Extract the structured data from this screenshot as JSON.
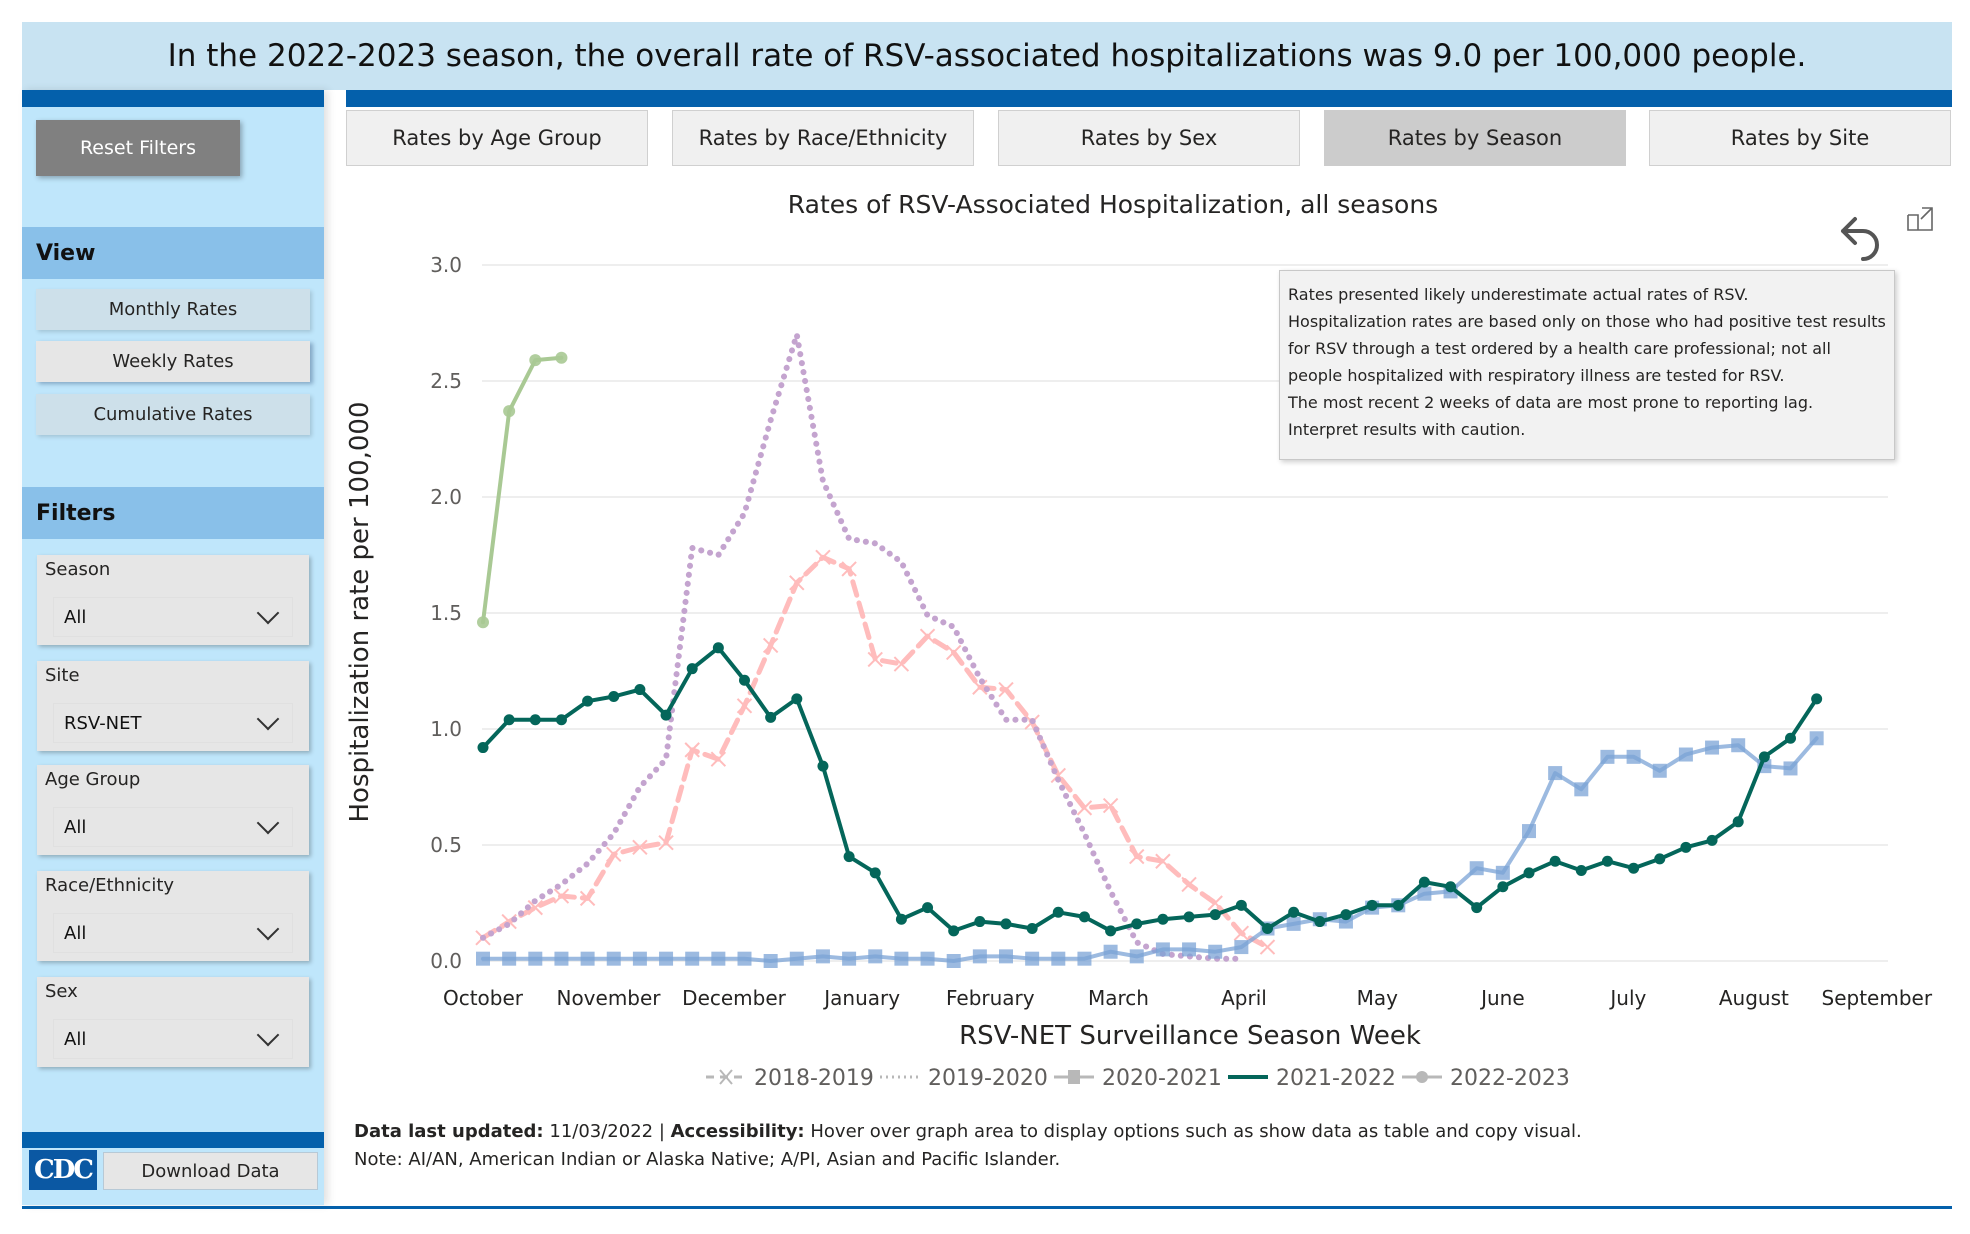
{
  "banner": {
    "text": "In the 2022-2023 season, the overall rate of RSV-associated hospitalizations was 9.0 per 100,000 people."
  },
  "sidebar": {
    "reset_label": "Reset Filters",
    "view_heading": "View",
    "view_buttons": [
      {
        "label": "Monthly Rates",
        "selected": false
      },
      {
        "label": "Weekly Rates",
        "selected": true
      },
      {
        "label": "Cumulative Rates",
        "selected": false
      }
    ],
    "filters_heading": "Filters",
    "filters": [
      {
        "label": "Season",
        "value": "All"
      },
      {
        "label": "Site",
        "value": "RSV-NET"
      },
      {
        "label": "Age Group",
        "value": "All"
      },
      {
        "label": "Race/Ethnicity",
        "value": "All"
      },
      {
        "label": "Sex",
        "value": "All"
      }
    ],
    "logo_text": "CDC",
    "download_label": "Download Data"
  },
  "tabs": [
    {
      "label": "Rates by Age Group",
      "active": false
    },
    {
      "label": "Rates by Race/Ethnicity",
      "active": false
    },
    {
      "label": "Rates by Sex",
      "active": false
    },
    {
      "label": "Rates by Season",
      "active": true
    },
    {
      "label": "Rates by Site",
      "active": false
    }
  ],
  "icons": {
    "undo": "undo-icon",
    "focus": "focus-mode-icon"
  },
  "note": {
    "lines": [
      "Rates presented likely underestimate actual rates of RSV.",
      "Hospitalization rates are based only on those who had positive test results for RSV through a test ordered by a health care professional; not all people hospitalized with respiratory illness are tested for RSV.",
      "The most recent 2 weeks of data are most prone to reporting lag. Interpret results with caution."
    ]
  },
  "footer": {
    "updated_label": "Data last updated:",
    "updated_value": " 11/03/2022 | ",
    "access_label": "Accessibility:",
    "access_value": " Hover over graph area to display options such as show data as table and copy visual.",
    "note": "Note: AI/AN, American Indian or Alaska Native; A/PI, Asian and Pacific Islander."
  },
  "chart_data": {
    "type": "line",
    "title": "Rates of RSV-Associated Hospitalization, all seasons",
    "xlabel": "RSV-NET Surveillance Season Week",
    "ylabel": "Hospitalization rate per 100,000",
    "ylim": [
      0,
      3.0
    ],
    "yticks": [
      "0.0",
      "0.5",
      "1.0",
      "1.5",
      "2.0",
      "2.5",
      "3.0"
    ],
    "xticks": [
      {
        "label": "October",
        "week": 0
      },
      {
        "label": "November",
        "week": 4.8
      },
      {
        "label": "December",
        "week": 9.6
      },
      {
        "label": "January",
        "week": 14.5
      },
      {
        "label": "February",
        "week": 19.4
      },
      {
        "label": "March",
        "week": 24.3
      },
      {
        "label": "April",
        "week": 29.1
      },
      {
        "label": "May",
        "week": 34.2
      },
      {
        "label": "June",
        "week": 39.0
      },
      {
        "label": "July",
        "week": 43.8
      },
      {
        "label": "August",
        "week": 48.6
      },
      {
        "label": "September",
        "week": 53.3
      }
    ],
    "xrange": [
      0,
      52
    ],
    "grid": true,
    "legend_position": "bottom",
    "series": [
      {
        "name": "2018-2019",
        "color": "#ffbcbc",
        "style": "dashed",
        "marker": "x",
        "values": [
          0.1,
          0.17,
          0.23,
          0.28,
          0.27,
          0.46,
          0.49,
          0.51,
          0.91,
          0.87,
          1.1,
          1.36,
          1.63,
          1.74,
          1.69,
          1.3,
          1.28,
          1.4,
          1.33,
          1.18,
          1.17,
          1.03,
          0.8,
          0.66,
          0.67,
          0.45,
          0.43,
          0.33,
          0.25,
          0.12,
          0.06
        ]
      },
      {
        "name": "2019-2020",
        "color": "#c4a4cf",
        "style": "dotted",
        "marker": "none",
        "values": [
          0.1,
          0.16,
          0.26,
          0.33,
          0.42,
          0.55,
          0.75,
          0.87,
          1.78,
          1.75,
          1.93,
          2.33,
          2.7,
          2.07,
          1.82,
          1.8,
          1.72,
          1.49,
          1.44,
          1.22,
          1.04,
          1.04,
          0.78,
          0.55,
          0.3,
          0.08,
          0.03,
          0.02,
          0.01,
          0.01
        ]
      },
      {
        "name": "2020-2021",
        "color": "#7ba3d6",
        "style": "solid",
        "marker": "square",
        "values": [
          0.01,
          0.01,
          0.01,
          0.01,
          0.01,
          0.01,
          0.01,
          0.01,
          0.01,
          0.01,
          0.01,
          0.0,
          0.01,
          0.02,
          0.01,
          0.02,
          0.01,
          0.01,
          0.0,
          0.02,
          0.02,
          0.01,
          0.01,
          0.01,
          0.04,
          0.02,
          0.05,
          0.05,
          0.04,
          0.06,
          0.14,
          0.16,
          0.18,
          0.17,
          0.23,
          0.24,
          0.29,
          0.3,
          0.4,
          0.38,
          0.56,
          0.81,
          0.74,
          0.88,
          0.88,
          0.82,
          0.89,
          0.92,
          0.93,
          0.84,
          0.83,
          0.96
        ]
      },
      {
        "name": "2021-2022",
        "color": "#04665a",
        "style": "solid",
        "marker": "circle",
        "values": [
          0.92,
          1.04,
          1.04,
          1.04,
          1.12,
          1.14,
          1.17,
          1.06,
          1.26,
          1.35,
          1.21,
          1.05,
          1.13,
          0.84,
          0.45,
          0.38,
          0.18,
          0.23,
          0.13,
          0.17,
          0.16,
          0.14,
          0.21,
          0.19,
          0.13,
          0.16,
          0.18,
          0.19,
          0.2,
          0.24,
          0.14,
          0.21,
          0.17,
          0.2,
          0.24,
          0.24,
          0.34,
          0.32,
          0.23,
          0.32,
          0.38,
          0.43,
          0.39,
          0.43,
          0.4,
          0.44,
          0.49,
          0.52,
          0.6,
          0.88,
          0.96,
          1.13
        ]
      },
      {
        "name": "2022-2023",
        "color": "#a9c994",
        "style": "solid",
        "marker": "circle",
        "values": [
          1.46,
          2.37,
          2.59,
          2.6
        ]
      }
    ],
    "legend_swatch_color": "#b8b8b8"
  }
}
